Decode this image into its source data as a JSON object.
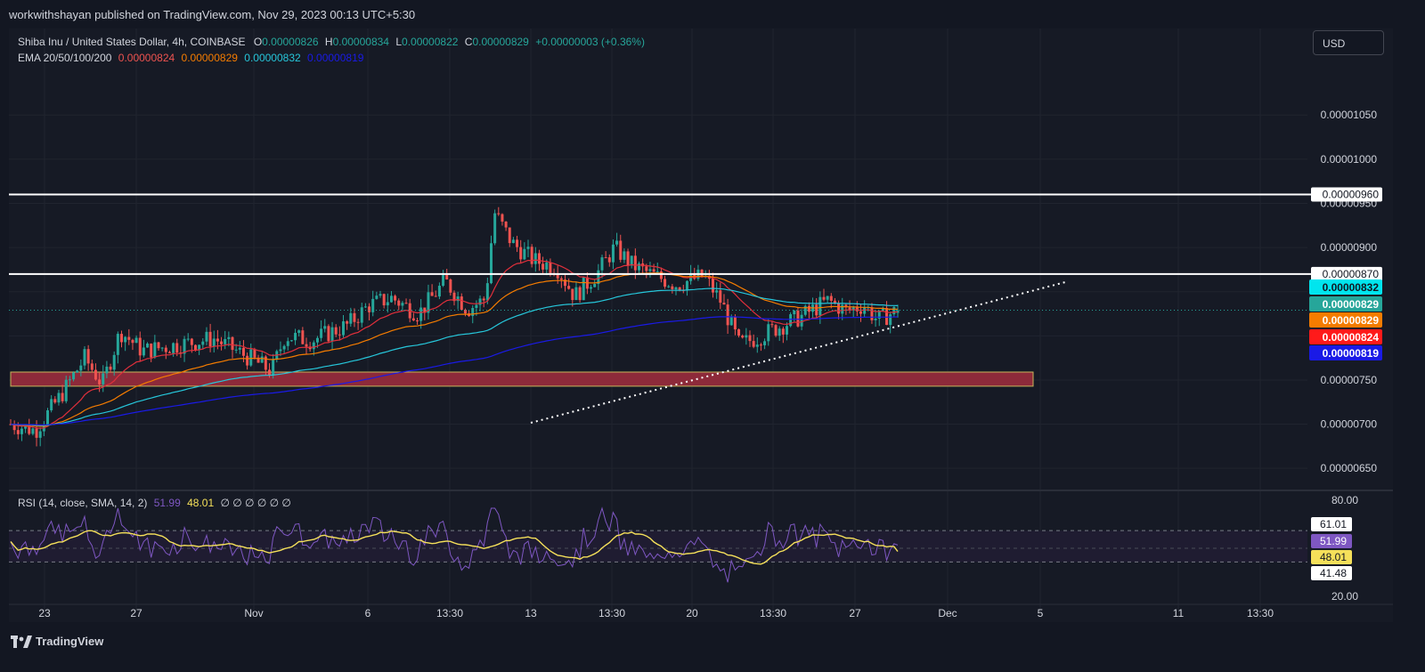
{
  "header": {
    "publisher_line": "workwithshayan published on TradingView.com, Nov 29, 2023 00:13 UTC+5:30"
  },
  "legend": {
    "symbol": "Shiba Inu / United States Dollar, 4h, COINBASE",
    "ohlc": {
      "o_label": "O",
      "o": "0.00000826",
      "h_label": "H",
      "h": "0.00000834",
      "l_label": "L",
      "l": "0.00000822",
      "c_label": "C",
      "c": "0.00000829",
      "change": "+0.00000003 (+0.36%)"
    },
    "ema_label": "EMA 20/50/100/200",
    "ema_values": [
      "0.00000824",
      "0.00000829",
      "0.00000832",
      "0.00000819"
    ],
    "rsi_label": "RSI (14, close, SMA, 14, 2)",
    "rsi_value": "51.99",
    "rsi_sma": "48.01",
    "rsi_extras": "∅ ∅ ∅ ∅ ∅ ∅"
  },
  "currency_button": "USD",
  "footer": {
    "brand": "TradingView"
  },
  "colors": {
    "background": "#131722",
    "up": "#26a69a",
    "down": "#ef5350",
    "ema20": "#e02f3b",
    "ema50": "#f57c00",
    "ema100": "#26c6da",
    "ema200": "#1a1ae6",
    "rsi_line": "#7e57c2",
    "rsi_sma": "#f5e05a",
    "zone": "#8d2a3a"
  },
  "chart_data": {
    "type": "candlestick",
    "title": "Shiba Inu / United States Dollar, 4h, COINBASE",
    "x_ticks": [
      "23",
      "27",
      "Nov",
      "6",
      "13:30",
      "13",
      "13:30",
      "20",
      "13:30",
      "27",
      "Dec",
      "5",
      "11",
      "13:30"
    ],
    "y_ticks": [
      "0.00001050",
      "0.00001000",
      "0.00000950",
      "0.00000900",
      "0.00000750",
      "0.00000700",
      "0.00000650"
    ],
    "ylim": [
      6.28e-06,
      1.148e-05
    ],
    "ohlc_last": {
      "open": 8.26e-06,
      "high": 8.34e-06,
      "low": 8.22e-06,
      "close": 8.29e-06
    },
    "horizontal_levels": [
      {
        "value": "0.00000960",
        "label": "0.00000960"
      },
      {
        "value": "0.00000870",
        "label": "0.00000870"
      }
    ],
    "support_zone": {
      "from": 7.43e-06,
      "to": 7.59e-06
    },
    "price_labels": [
      {
        "label": "0.00000832",
        "value": 8.32e-06,
        "series": "EMA 100"
      },
      {
        "label": "0.00000829",
        "value": 8.29e-06,
        "series": "Price"
      },
      {
        "label": "0.00000829",
        "value": 8.29e-06,
        "series": "EMA 50"
      },
      {
        "label": "0.00000824",
        "value": 8.24e-06,
        "series": "EMA 20"
      },
      {
        "label": "0.00000819",
        "value": 8.19e-06,
        "series": "EMA 200"
      }
    ],
    "rsi": {
      "y_ticks": [
        "80.00",
        "20.00"
      ],
      "ylim": [
        20,
        80
      ],
      "labels": [
        "61.01",
        "51.99",
        "48.01",
        "41.48"
      ],
      "upper_band": 61.01,
      "lower_band": 41.48,
      "value": 51.99,
      "sma": 48.01
    }
  }
}
